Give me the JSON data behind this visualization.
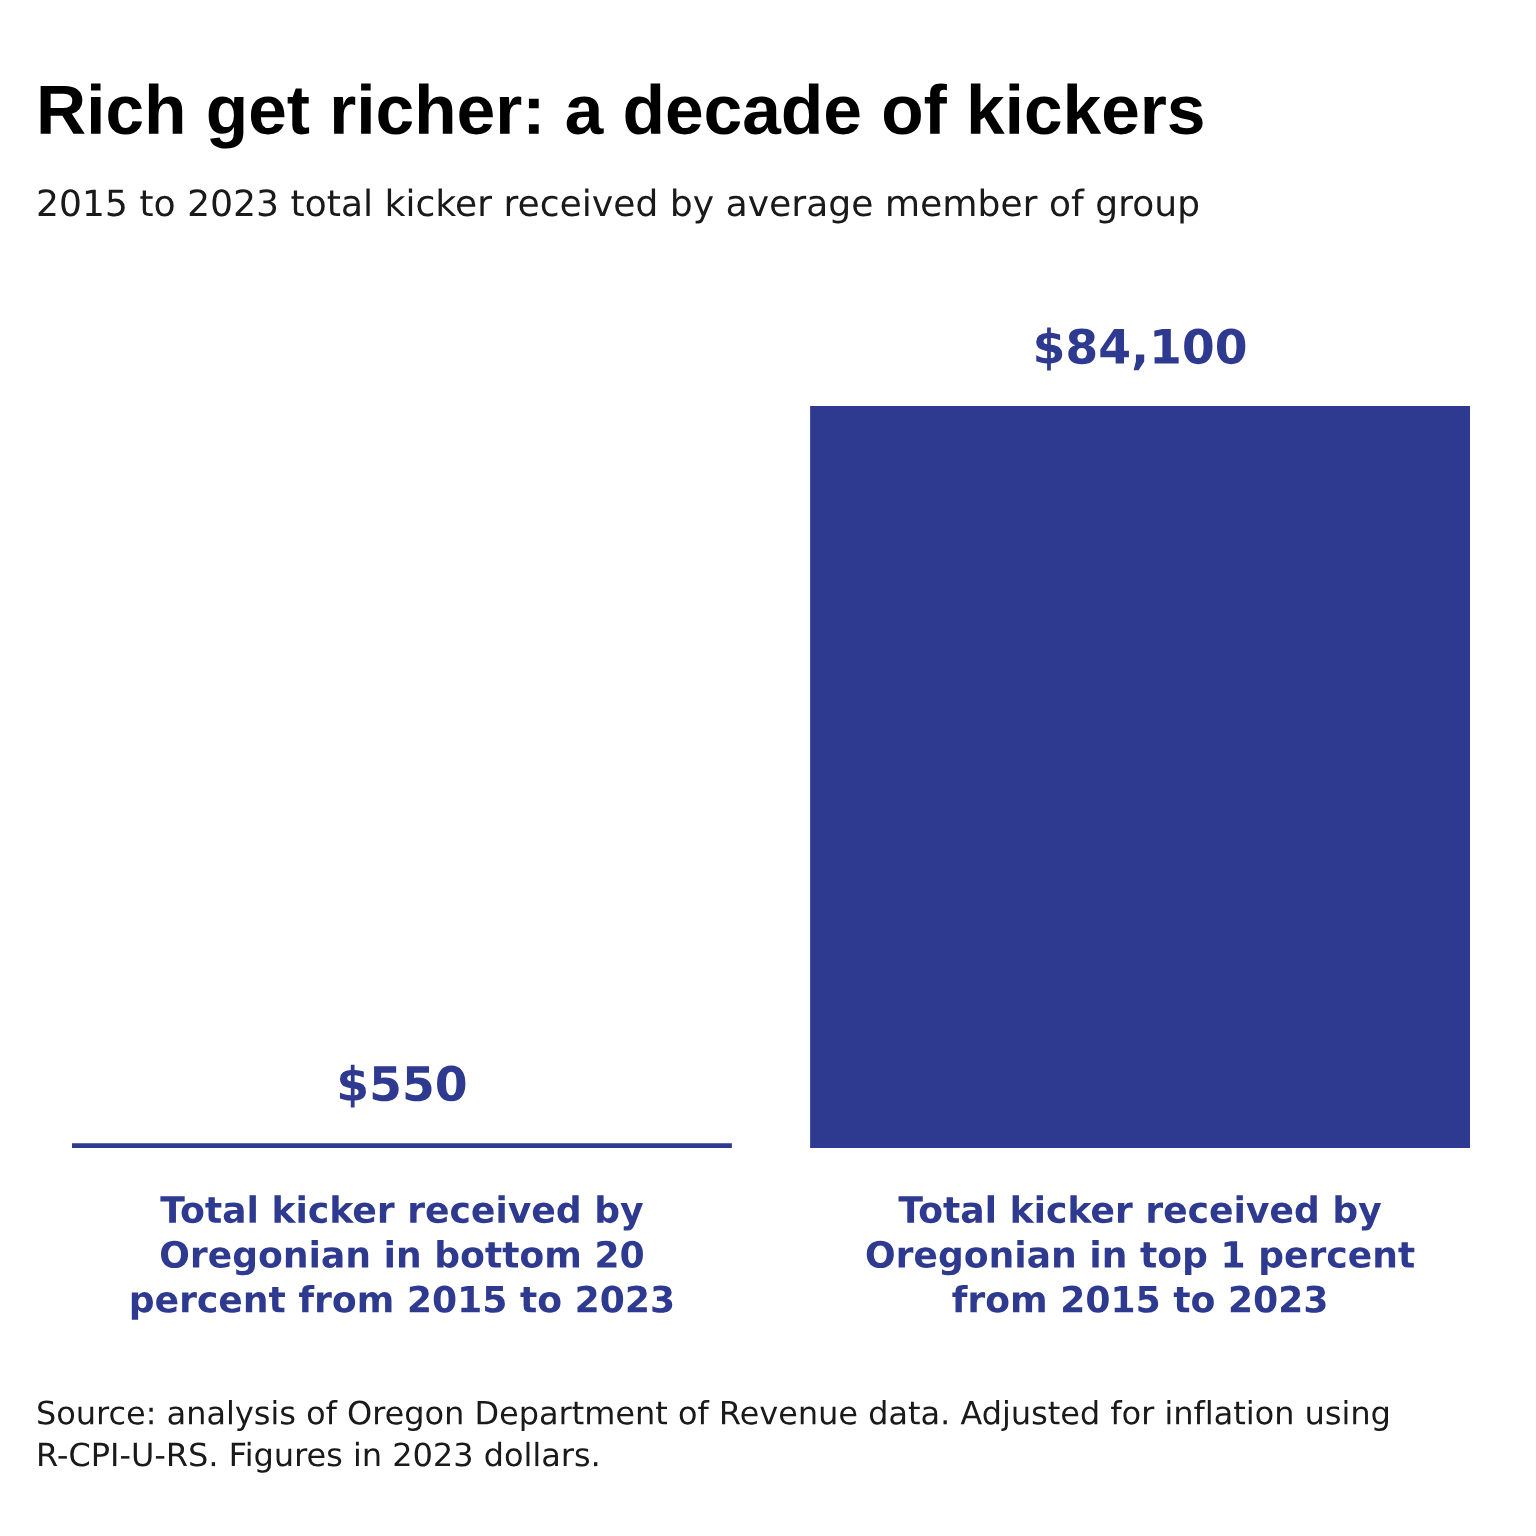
{
  "chart_data": {
    "type": "bar",
    "title": "Rich get richer: a decade of kickers",
    "subtitle": "2015 to 2023 total kicker received by average member of group",
    "categories": [
      "Total kicker received by\nOregonian in bottom 20\npercent from 2015 to 2023",
      "Total kicker received by\nOregonian in top 1 percent\nfrom 2015 to 2023"
    ],
    "values": [
      550,
      84100
    ],
    "color": "#2e3990",
    "value_labels": [
      "$550",
      "$84,100"
    ],
    "tick_labels": "x",
    "annotations": [
      "Source: analysis of Oregon Department of Revenue data. Adjusted for inflation using R-CPI-U-RS. Figures in 2023 dollars."
    ]
  }
}
